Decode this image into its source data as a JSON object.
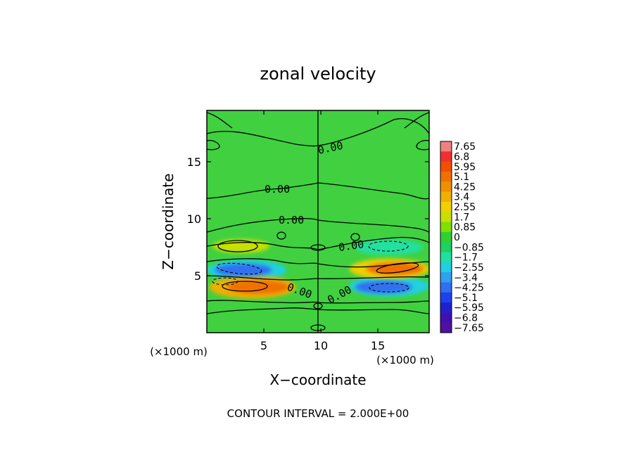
{
  "chart_data": {
    "type": "heatmap",
    "title": "zonal velocity",
    "xlabel": "X−coordinate",
    "ylabel": "Z−coordinate",
    "x_unit_left": "(×1000 m)",
    "x_unit_right": "(×1000 m)",
    "xlim": [
      0,
      19.5
    ],
    "ylim": [
      0,
      19.5
    ],
    "x_ticks": [
      5,
      10,
      15
    ],
    "y_ticks": [
      5,
      10,
      15
    ],
    "x_tick_labels": [
      "5",
      "10",
      "15"
    ],
    "y_tick_labels": [
      "5",
      "10",
      "15"
    ],
    "footer": "CONTOUR INTERVAL = 2.000E+00",
    "contour_label": "0.00",
    "colorbar": {
      "labels": [
        "7.65",
        "6.8",
        "5.95",
        "5.1",
        "4.25",
        "3.4",
        "2.55",
        "1.7",
        "0.85",
        "0",
        "−0.85",
        "−1.7",
        "−2.55",
        "−3.4",
        "−4.25",
        "−5.1",
        "−5.95",
        "−6.8",
        "−7.65"
      ],
      "colors": [
        "#f08080",
        "#f03030",
        "#f05000",
        "#f07000",
        "#f09000",
        "#f0b000",
        "#f0d000",
        "#c8e000",
        "#80e000",
        "#30d030",
        "#20d060",
        "#20e0a0",
        "#20d0e0",
        "#30a0f0",
        "#3070f0",
        "#2040f0",
        "#2020d0",
        "#4010b0",
        "#5010a0"
      ]
    },
    "blobs": [
      {
        "name": "upper-left-jet",
        "x": 3.2,
        "z": 5.5,
        "rx": 2.5,
        "rz": 0.55,
        "value": -4.5
      },
      {
        "name": "upper-left-jet-outer",
        "x": 3.5,
        "z": 5.5,
        "rx": 3.5,
        "rz": 0.9,
        "value": -2.5
      },
      {
        "name": "lower-left-jet",
        "x": 4.5,
        "z": 4.0,
        "rx": 2.7,
        "rz": 0.6,
        "value": 5.5
      },
      {
        "name": "lower-left-jet-outer",
        "x": 4.0,
        "z": 4.0,
        "rx": 3.8,
        "rz": 1.0,
        "value": 3.0
      },
      {
        "name": "upper-right-jet",
        "x": 16.5,
        "z": 5.6,
        "rx": 2.5,
        "rz": 0.55,
        "value": 5.0
      },
      {
        "name": "upper-right-jet-outer",
        "x": 16.0,
        "z": 5.6,
        "rx": 3.5,
        "rz": 0.9,
        "value": 2.8
      },
      {
        "name": "lower-right-jet",
        "x": 15.5,
        "z": 4.0,
        "rx": 2.5,
        "rz": 0.55,
        "value": -4.5
      },
      {
        "name": "lower-right-jet-outer",
        "x": 16.0,
        "z": 4.1,
        "rx": 3.5,
        "rz": 0.9,
        "value": -2.5
      },
      {
        "name": "left-positive-lobe",
        "x": 3.0,
        "z": 7.6,
        "rx": 2.5,
        "rz": 0.6,
        "value": 1.8
      },
      {
        "name": "right-negative-lobe",
        "x": 16.0,
        "z": 7.5,
        "rx": 3.0,
        "rz": 0.7,
        "value": -2.0
      }
    ]
  }
}
